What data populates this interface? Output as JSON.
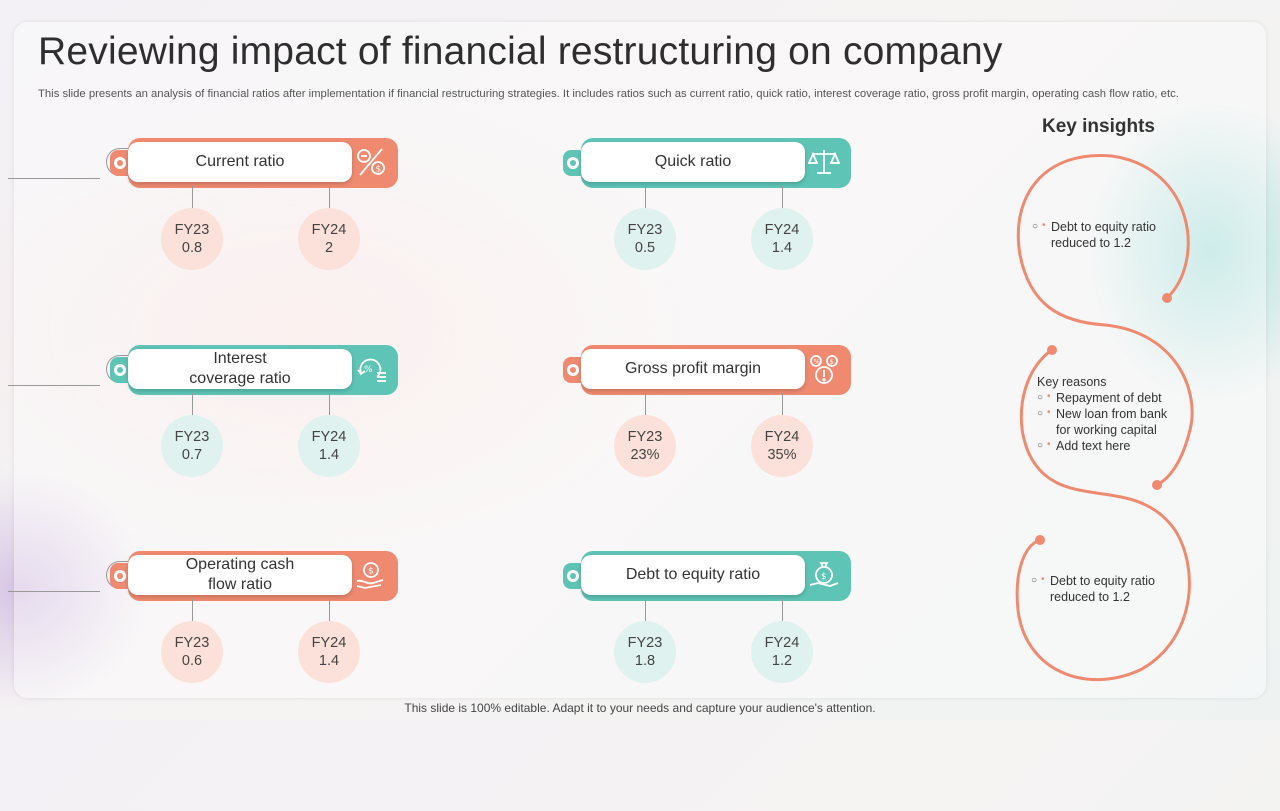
{
  "slide": {
    "title": "Reviewing impact of financial restructuring on company",
    "subtitle": "This slide presents an analysis of financial ratios after implementation if financial restructuring strategies. It includes ratios such as current ratio, quick ratio, interest coverage ratio, gross profit margin, operating cash flow ratio, etc.",
    "footer": "This slide is 100% editable. Adapt it to your needs and capture your audience's attention."
  },
  "colors": {
    "salmon": "#ef8a70",
    "teal": "#5ec4b6",
    "salmon_light": "#fbe1d9",
    "teal_light": "#dff2ef"
  },
  "ratios": [
    {
      "label": "Current ratio",
      "icon": "ratio-calculator-icon",
      "color": "salmon",
      "fy23_label": "FY23",
      "fy23_value": "0.8",
      "fy24_label": "FY24",
      "fy24_value": "2"
    },
    {
      "label": "Quick ratio",
      "icon": "balance-scale-icon",
      "color": "teal",
      "fy23_label": "FY23",
      "fy23_value": "0.5",
      "fy24_label": "FY24",
      "fy24_value": "1.4"
    },
    {
      "label": "Interest\ncoverage ratio",
      "icon": "percent-cycle-icon",
      "color": "teal",
      "fy23_label": "FY23",
      "fy23_value": "0.7",
      "fy24_label": "FY24",
      "fy24_value": "1.4"
    },
    {
      "label": "Gross profit margin",
      "icon": "profit-percent-icon",
      "color": "salmon",
      "fy23_label": "FY23",
      "fy23_value": "23%",
      "fy24_label": "FY24",
      "fy24_value": "35%"
    },
    {
      "label": "Operating cash\nflow ratio",
      "icon": "cash-hand-icon",
      "color": "salmon",
      "fy23_label": "FY23",
      "fy23_value": "0.6",
      "fy24_label": "FY24",
      "fy24_value": "1.4"
    },
    {
      "label": "Debt to equity ratio",
      "icon": "money-bag-hand-icon",
      "color": "teal",
      "fy23_label": "FY23",
      "fy23_value": "1.8",
      "fy24_label": "FY24",
      "fy24_value": "1.2"
    }
  ],
  "insights": {
    "title": "Key insights",
    "block1": [
      "Debt to equity ratio reduced to 1.2"
    ],
    "block2_heading": "Key reasons",
    "block2": [
      "Repayment of debt",
      "New loan from bank for working capital",
      "Add text here"
    ],
    "block3": [
      "Debt to equity ratio reduced to 1.2"
    ]
  }
}
